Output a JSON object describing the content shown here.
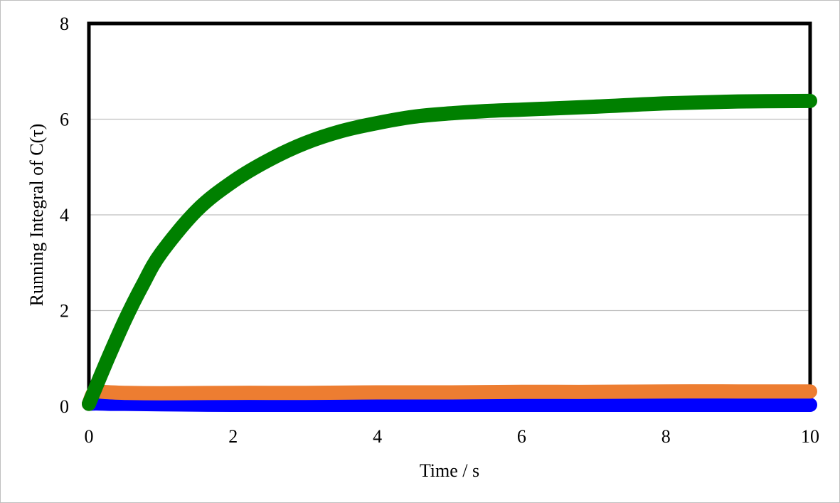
{
  "chart_data": {
    "type": "line",
    "title": "",
    "xlabel": "Time / s",
    "ylabel": "Running Integral of C(τ)",
    "xlim": [
      0,
      10
    ],
    "ylim": [
      0,
      8
    ],
    "xticks": [
      "0",
      "2",
      "4",
      "6",
      "8",
      "10"
    ],
    "yticks": [
      "0",
      "2",
      "4",
      "6",
      "8"
    ],
    "grid": "horizontal",
    "legend": "none",
    "series": [
      {
        "color": "#0000ff",
        "x": [
          0,
          0.1,
          0.3,
          0.5,
          1,
          2,
          3,
          4,
          5,
          6,
          7,
          8,
          9,
          10
        ],
        "y": [
          0.05,
          0.06,
          0.05,
          0.05,
          0.04,
          0.03,
          0.03,
          0.03,
          0.03,
          0.03,
          0.03,
          0.03,
          0.03,
          0.03
        ]
      },
      {
        "color": "#ed7d31",
        "x": [
          0,
          0.05,
          0.1,
          0.2,
          0.5,
          1,
          2,
          3,
          4,
          5,
          6,
          7,
          8,
          9,
          10
        ],
        "y": [
          0.05,
          0.25,
          0.32,
          0.3,
          0.28,
          0.27,
          0.28,
          0.28,
          0.29,
          0.29,
          0.3,
          0.3,
          0.31,
          0.31,
          0.31
        ]
      },
      {
        "color": "#008000",
        "x": [
          0,
          0.25,
          0.5,
          0.75,
          1,
          1.5,
          2,
          2.5,
          3,
          3.5,
          4,
          4.5,
          5,
          5.5,
          6,
          7,
          8,
          9,
          10
        ],
        "y": [
          0.05,
          0.95,
          1.8,
          2.55,
          3.2,
          4.1,
          4.7,
          5.15,
          5.5,
          5.75,
          5.92,
          6.05,
          6.12,
          6.17,
          6.2,
          6.26,
          6.33,
          6.37,
          6.38
        ]
      }
    ]
  }
}
